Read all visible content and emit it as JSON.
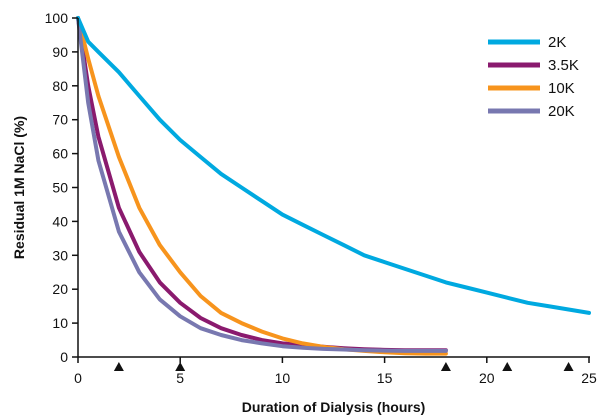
{
  "chart_data": {
    "type": "line",
    "title": "",
    "xlabel": "Duration of Dialysis (hours)",
    "ylabel": "Residual 1M NaCl (%)",
    "xlim": [
      0,
      25
    ],
    "ylim": [
      0,
      100
    ],
    "x_ticks": [
      "0",
      "5",
      "10",
      "15",
      "20",
      "25"
    ],
    "y_ticks": [
      "0",
      "10",
      "20",
      "30",
      "40",
      "50",
      "60",
      "70",
      "80",
      "90",
      "100"
    ],
    "grid": false,
    "legend_position": "top-right",
    "markers": {
      "shape": "triangle",
      "x": [
        2,
        5,
        18,
        21,
        24
      ]
    },
    "series": [
      {
        "name": "2K",
        "color": "#00a9e0",
        "x": [
          0,
          0.5,
          1,
          2,
          3,
          4,
          5,
          6,
          7,
          8,
          9,
          10,
          11,
          12,
          13,
          14,
          15,
          16,
          17,
          18,
          19,
          20,
          21,
          22,
          23,
          24,
          25
        ],
        "values": [
          100,
          93,
          90,
          84,
          77,
          70,
          64,
          59,
          54,
          50,
          46,
          42,
          39,
          36,
          33,
          30,
          28,
          26,
          24,
          22,
          20.5,
          19,
          17.5,
          16,
          15,
          14,
          13
        ]
      },
      {
        "name": "3.5K",
        "color": "#8a1a6e",
        "x": [
          0,
          0.5,
          1,
          2,
          3,
          4,
          5,
          6,
          7,
          8,
          9,
          10,
          11,
          12,
          13,
          14,
          15,
          16,
          17,
          18
        ],
        "values": [
          100,
          80,
          65,
          44,
          31,
          22,
          16,
          11.5,
          8.5,
          6.5,
          5,
          4,
          3.5,
          3,
          2.6,
          2.3,
          2.1,
          2,
          2,
          2
        ]
      },
      {
        "name": "10K",
        "color": "#f7941d",
        "x": [
          0,
          0.5,
          1,
          2,
          3,
          4,
          5,
          6,
          7,
          8,
          9,
          10,
          11,
          12,
          13,
          14,
          15,
          16,
          17,
          18
        ],
        "values": [
          100,
          88,
          77,
          59,
          44,
          33,
          25,
          18,
          13,
          10,
          7.5,
          5.5,
          4,
          3,
          2.3,
          1.8,
          1.4,
          1.1,
          1,
          1
        ]
      },
      {
        "name": "20K",
        "color": "#7878b0",
        "x": [
          0,
          0.5,
          1,
          2,
          3,
          4,
          5,
          6,
          7,
          8,
          9,
          10,
          11,
          12,
          13,
          14,
          15,
          16,
          17,
          18
        ],
        "values": [
          100,
          75,
          58,
          37,
          25,
          17,
          12,
          8.5,
          6.5,
          5,
          4,
          3.2,
          2.7,
          2.4,
          2.2,
          2,
          1.9,
          1.8,
          1.8,
          1.8
        ]
      }
    ]
  }
}
